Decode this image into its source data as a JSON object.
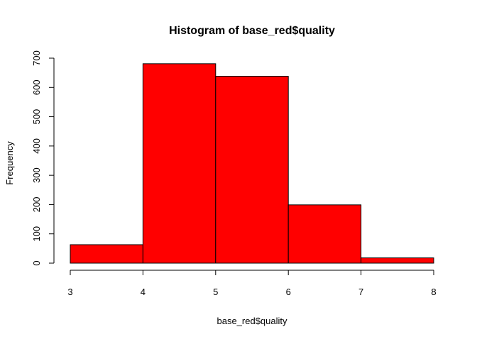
{
  "chart_data": {
    "type": "bar",
    "title": "Histogram of base_red$quality",
    "xlabel": "base_red$quality",
    "ylabel": "Frequency",
    "bins": [
      {
        "x0": 3,
        "x1": 4,
        "count": 63
      },
      {
        "x0": 4,
        "x1": 5,
        "count": 681
      },
      {
        "x0": 5,
        "x1": 6,
        "count": 638
      },
      {
        "x0": 6,
        "x1": 7,
        "count": 199
      },
      {
        "x0": 7,
        "x1": 8,
        "count": 18
      }
    ],
    "xlim": [
      3,
      8
    ],
    "ylim": [
      0,
      700
    ],
    "xticks": [
      "3",
      "4",
      "5",
      "6",
      "7",
      "8"
    ],
    "yticks": [
      "0",
      "100",
      "200",
      "300",
      "400",
      "500",
      "600",
      "700"
    ],
    "bar_color": "#ff0000",
    "bar_border_color": "#000000",
    "grid": false,
    "legend": "none"
  }
}
